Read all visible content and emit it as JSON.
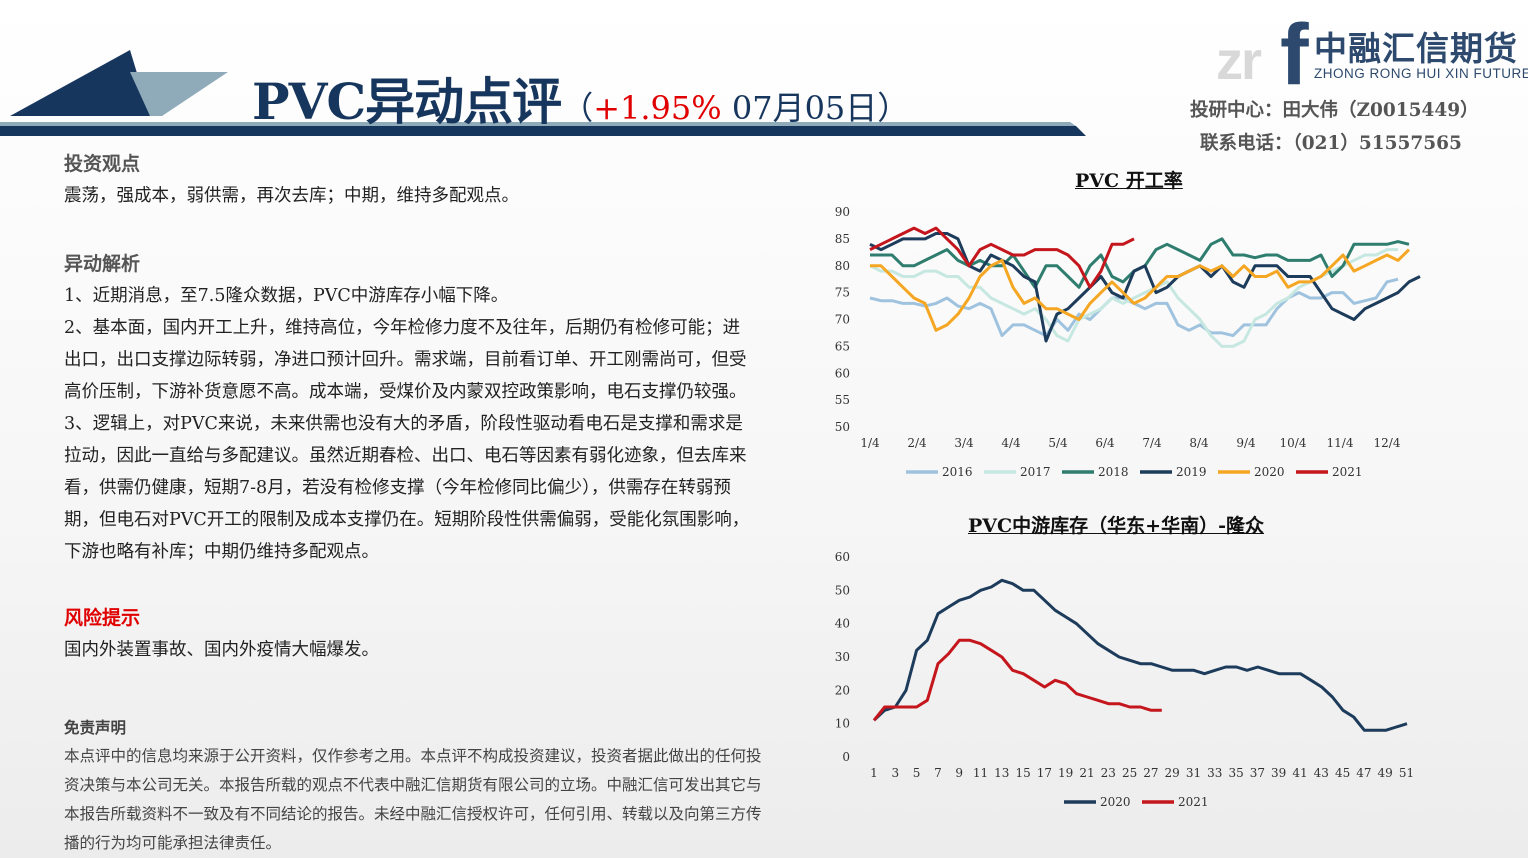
{
  "header": {
    "title_main": "PVC异动点评",
    "title_open": "（",
    "title_change": "+1.95%",
    "title_date": " 07月05日）",
    "logo_zr": "zr",
    "logo_f": "f",
    "logo_cn": "中融汇信期货",
    "logo_en": "ZHONG RONG HUI XIN FUTURES",
    "analyst": "投研中心：田大伟（Z0015449）",
    "phone": "联系电话：（021）51557565",
    "colors": {
      "navy": "#17365d",
      "accent_red": "#e00000",
      "steel": "#8faab9"
    }
  },
  "left": {
    "view_title": "投资观点",
    "view_text": "震荡，强成本，弱供需，再次去库；中期，维持多配观点。",
    "analysis_title": "异动解析",
    "analysis_paras": [
      "1、近期消息，至7.5隆众数据，PVC中游库存小幅下降。",
      "2、基本面，国内开工上升，维持高位，今年检修力度不及往年，后期仍有检修可能；进出口，出口支撑边际转弱，净进口预计回升。需求端，目前看订单、开工刚需尚可，但受高价压制，下游补货意愿不高。成本端，受煤价及内蒙双控政策影响，电石支撑仍较强。",
      "3、逻辑上，对PVC来说，未来供需也没有大的矛盾，阶段性驱动看电石是支撑和需求是拉动，因此一直给与多配建议。虽然近期春检、出口、电石等因素有弱化迹象，但去库来看，供需仍健康，短期7-8月，若没有检修支撑（今年检修同比偏少），供需存在转弱预期，但电石对PVC开工的限制及成本支撑仍在。短期阶段性供需偏弱，受能化氛围影响，下游也略有补库；中期仍维持多配观点。"
    ],
    "risk_title": "风险提示",
    "risk_text": "国内外装置事故、国内外疫情大幅爆发。",
    "disclaimer_title": "免责声明",
    "disclaimer_text": "本点评中的信息均来源于公开资料，仅作参考之用。本点评不构成投资建议，投资者据此做出的任何投资决策与本公司无关。本报告所载的观点不代表中融汇信期货有限公司的立场。中融汇信可发出其它与本报告所载资料不一致及有不同结论的报告。未经中融汇信授权许可，任何引用、转载以及向第三方传播的行为均可能承担法律责任。"
  },
  "chart_data": [
    {
      "type": "line",
      "title": "PVC 开工率",
      "ylim": [
        50,
        90
      ],
      "yticks": [
        "50",
        "55",
        "60",
        "65",
        "70",
        "75",
        "80",
        "85",
        "90"
      ],
      "x_ticks": [
        "1/4",
        "2/4",
        "3/4",
        "4/4",
        "5/4",
        "6/4",
        "7/4",
        "8/4",
        "9/4",
        "10/4",
        "11/4",
        "12/4"
      ],
      "x_range_weeks": [
        0,
        51
      ],
      "legend": "bottom",
      "series": [
        {
          "name": "2016",
          "color": "#9fc3df",
          "values": [
            74,
            73.5,
            73.5,
            73,
            73,
            72.5,
            73,
            74,
            72.5,
            72,
            73,
            72,
            67,
            69,
            69,
            68,
            67,
            70,
            68,
            71,
            70,
            72,
            74,
            74,
            73,
            72,
            73,
            73,
            69,
            68,
            69,
            67.5,
            67.5,
            67,
            69,
            69,
            69,
            72,
            74,
            75,
            74,
            74,
            75,
            75,
            73,
            73.5,
            74,
            77,
            77.5
          ]
        },
        {
          "name": "2017",
          "color": "#c6e8e1",
          "values": [
            80,
            79,
            79,
            78,
            78,
            79,
            79,
            78,
            78,
            76,
            76,
            74,
            73,
            72,
            71,
            72,
            70,
            67,
            66,
            70,
            71,
            72,
            74,
            73,
            74,
            75,
            76,
            77,
            74,
            72,
            70,
            67,
            65,
            65,
            66,
            70,
            71,
            73,
            74,
            76,
            77,
            78,
            79,
            80,
            81,
            82,
            82,
            83,
            83
          ]
        },
        {
          "name": "2018",
          "color": "#2e7d6e",
          "values": [
            82,
            82,
            82,
            80,
            80,
            81,
            82,
            83,
            81,
            80,
            81,
            80,
            80,
            82,
            79,
            76,
            80,
            80,
            78,
            76,
            80,
            82,
            78,
            77,
            79,
            80,
            83,
            84,
            83,
            82,
            81,
            84,
            85,
            82,
            82,
            81.5,
            82,
            82,
            81,
            81,
            81,
            82,
            78,
            80,
            84,
            84,
            84,
            84,
            84.5,
            84
          ]
        },
        {
          "name": "2019",
          "color": "#1d3b5a",
          "values": [
            84,
            83,
            84,
            85,
            85,
            85,
            86,
            86,
            85,
            80,
            79,
            82,
            81,
            80,
            78,
            77,
            66,
            71,
            72,
            74,
            76,
            78,
            75,
            74,
            79,
            80,
            75,
            76,
            78,
            79,
            80,
            78,
            80,
            77,
            76,
            80,
            80,
            80,
            78,
            78,
            78,
            75,
            72,
            71,
            70,
            72,
            73,
            74,
            75,
            77,
            78
          ]
        },
        {
          "name": "2020",
          "color": "#f5a623",
          "values": [
            80,
            80,
            78,
            76,
            74,
            73,
            68,
            69,
            71,
            74,
            78,
            80,
            81,
            76,
            73,
            74,
            72,
            72,
            71,
            70,
            73,
            75,
            77,
            75,
            73,
            74,
            76,
            78,
            78,
            79,
            80,
            79,
            80,
            78,
            80,
            78,
            78,
            79,
            76,
            77,
            77,
            78,
            80,
            82,
            79,
            80,
            81,
            82,
            81,
            83
          ]
        },
        {
          "name": "2021",
          "color": "#c4161c",
          "values": [
            83,
            84,
            85,
            86,
            87,
            86,
            87,
            85,
            83,
            80,
            83,
            84,
            83,
            82,
            82,
            83,
            83,
            83,
            82,
            80,
            76,
            79,
            84,
            84,
            85
          ]
        }
      ]
    },
    {
      "type": "line",
      "title": "PVC中游库存（华东+华南）-隆众",
      "ylim": [
        0,
        60
      ],
      "yticks": [
        "0",
        "10",
        "20",
        "30",
        "40",
        "50",
        "60"
      ],
      "x_ticks": [
        "1",
        "3",
        "5",
        "7",
        "9",
        "11",
        "13",
        "15",
        "17",
        "19",
        "21",
        "23",
        "25",
        "27",
        "29",
        "31",
        "33",
        "35",
        "37",
        "39",
        "41",
        "43",
        "45",
        "47",
        "49",
        "51"
      ],
      "legend": "bottom",
      "series": [
        {
          "name": "2020",
          "color": "#1d3b5a",
          "values": [
            11,
            14,
            15,
            20,
            32,
            35,
            43,
            45,
            47,
            48,
            50,
            51,
            53,
            52,
            50,
            50,
            47,
            44,
            42,
            40,
            37,
            34,
            32,
            30,
            29,
            28,
            28,
            27,
            26,
            26,
            26,
            25,
            26,
            27,
            27,
            26,
            27,
            26,
            25,
            25,
            25,
            23,
            21,
            18,
            14,
            12,
            8,
            8,
            8,
            9,
            10
          ]
        },
        {
          "name": "2021",
          "color": "#c4161c",
          "values": [
            11,
            15,
            15,
            15,
            15,
            17,
            28,
            31,
            35,
            35,
            34,
            32,
            30,
            26,
            25,
            23,
            21,
            23,
            22,
            19,
            18,
            17,
            16,
            16,
            15,
            15,
            14,
            14
          ]
        }
      ]
    }
  ]
}
